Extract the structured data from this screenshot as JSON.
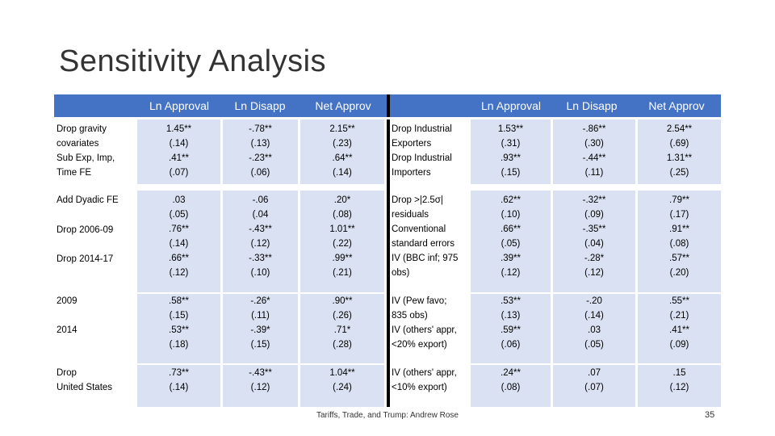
{
  "slide": {
    "title": "Sensitivity Analysis",
    "footer": "Tariffs, Trade, and Trump: Andrew Rose",
    "page_number": "35"
  },
  "headers": {
    "left": [
      "Ln Approval",
      "Ln Disapp",
      "Net Approv"
    ],
    "right": [
      "Ln Approval",
      "Ln Disapp",
      "Net Approv"
    ]
  },
  "left_stub": [
    "Drop gravity\ncovariates",
    "Sub Exp, Imp,\nTime FE",
    "Add Dyadic FE",
    "Drop 2006-09",
    "Drop 2014-17",
    "2009",
    "2014",
    "Drop\nUnited States"
  ],
  "left_cols": [
    [
      "1.45**\n(.14)\n.41**\n(.07)",
      ".03\n(.05)\n.76**\n(.14)\n.66**\n(.12)",
      ".58**\n(.15)\n.53**\n(.18)",
      ".73**\n(.14)"
    ],
    [
      "-.78**\n(.13)\n-.23**\n(.06)",
      "-.06\n(.04\n-.43**\n(.12)\n-.33**\n(.10)",
      "-.26*\n(.11)\n-.39*\n(.15)",
      "-.43**\n(.12)"
    ],
    [
      "2.15**\n(.23)\n.64**\n(.14)",
      ".20*\n(.08)\n1.01**\n(.22)\n.99**\n(.21)",
      ".90**\n(.26)\n.71*\n(.28)",
      "1.04**\n(.24)"
    ]
  ],
  "right_stub": [
    "Drop Industrial\nExporters\nDrop Industrial\nImporters",
    "Drop >|2.5σ|\nresiduals\nConventional\nstandard errors\nIV (BBC inf; 975\nobs)",
    "IV (Pew favo;\n835 obs)\nIV (others' appr,\n<20% export)",
    "IV (others' appr,\n<10% export)"
  ],
  "right_cols": [
    [
      "1.53**\n(.31)\n.93**\n(.15)",
      ".62**\n(.10)\n.66**\n(.05)\n.39**\n(.12)",
      ".53**\n(.13)\n.59**\n(.06)",
      ".24**\n(.08)"
    ],
    [
      "-.86**\n(.30)\n-.44**\n(.11)",
      "-.32**\n(.09)\n-.35**\n(.04)\n-.28*\n(.12)",
      "-.20\n(.14)\n.03\n(.05)",
      ".07\n(.07)"
    ],
    [
      "2.54**\n(.69)\n1.31**\n(.25)",
      ".79**\n(.17)\n.91**\n(.08)\n.57**\n(.20)",
      ".55**\n(.21)\n.41**\n(.09)",
      ".15\n(.12)"
    ]
  ],
  "colors": {
    "header_blue": "#4472c4",
    "band": "#d9e1f2"
  }
}
